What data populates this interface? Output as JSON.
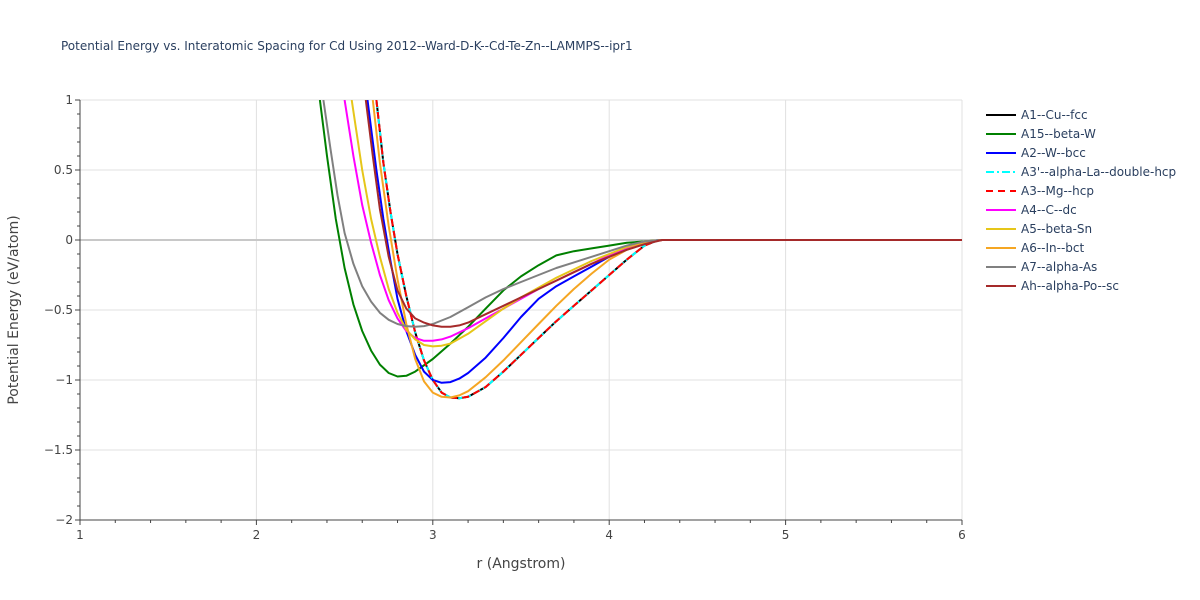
{
  "chart_data": {
    "type": "line",
    "title": "Potential Energy vs. Interatomic Spacing for Cd Using 2012--Ward-D-K--Cd-Te-Zn--LAMMPS--ipr1",
    "xlabel": "r (Angstrom)",
    "ylabel": "Potential Energy (eV/atom)",
    "xlim": [
      1,
      6
    ],
    "ylim": [
      -2,
      1
    ],
    "xticks": [
      1,
      2,
      3,
      4,
      5,
      6
    ],
    "xtick_labels": [
      "1",
      "2",
      "3",
      "4",
      "5",
      "6"
    ],
    "yticks": [
      -2,
      -1.5,
      -1,
      -0.5,
      0,
      0.5,
      1
    ],
    "ytick_labels": [
      "−2",
      "−1.5",
      "−1",
      "−0.5",
      "0",
      "0.5",
      "1"
    ],
    "grid": true,
    "legend_position": "right",
    "series": [
      {
        "name": "A1--Cu--fcc",
        "color": "#000000",
        "dash": "solid",
        "x": [
          2.68,
          2.72,
          2.76,
          2.8,
          2.85,
          2.9,
          2.95,
          3.0,
          3.05,
          3.1,
          3.15,
          3.2,
          3.3,
          3.4,
          3.5,
          3.6,
          3.7,
          3.8,
          3.9,
          4.0,
          4.1,
          4.2,
          4.28,
          4.4,
          5.0,
          6.0
        ],
        "y": [
          1.0,
          0.55,
          0.2,
          -0.1,
          -0.4,
          -0.66,
          -0.86,
          -1.0,
          -1.09,
          -1.125,
          -1.13,
          -1.12,
          -1.05,
          -0.94,
          -0.82,
          -0.7,
          -0.58,
          -0.47,
          -0.36,
          -0.25,
          -0.14,
          -0.04,
          0.0,
          0.0,
          0.0,
          0.0
        ]
      },
      {
        "name": "A15--beta-W",
        "color": "#008000",
        "dash": "solid",
        "x": [
          2.36,
          2.4,
          2.45,
          2.5,
          2.55,
          2.6,
          2.65,
          2.7,
          2.75,
          2.8,
          2.85,
          2.9,
          3.0,
          3.1,
          3.2,
          3.3,
          3.4,
          3.5,
          3.6,
          3.7,
          3.8,
          3.9,
          4.0,
          4.1,
          4.2,
          4.3,
          5.0,
          6.0
        ],
        "y": [
          1.0,
          0.6,
          0.15,
          -0.2,
          -0.46,
          -0.65,
          -0.79,
          -0.89,
          -0.95,
          -0.975,
          -0.97,
          -0.94,
          -0.85,
          -0.74,
          -0.62,
          -0.49,
          -0.36,
          -0.26,
          -0.18,
          -0.11,
          -0.08,
          -0.06,
          -0.04,
          -0.02,
          -0.01,
          0.0,
          0.0,
          0.0
        ]
      },
      {
        "name": "A2--W--bcc",
        "color": "#0000ff",
        "dash": "solid",
        "x": [
          2.63,
          2.68,
          2.72,
          2.76,
          2.8,
          2.85,
          2.9,
          2.95,
          3.0,
          3.05,
          3.1,
          3.15,
          3.2,
          3.3,
          3.4,
          3.5,
          3.6,
          3.7,
          3.8,
          3.9,
          4.0,
          4.1,
          4.2,
          4.28,
          5.0,
          6.0
        ],
        "y": [
          1.0,
          0.5,
          0.15,
          -0.15,
          -0.42,
          -0.65,
          -0.82,
          -0.94,
          -1.0,
          -1.02,
          -1.015,
          -0.99,
          -0.95,
          -0.84,
          -0.7,
          -0.55,
          -0.42,
          -0.33,
          -0.26,
          -0.19,
          -0.12,
          -0.06,
          -0.02,
          0.0,
          0.0,
          0.0
        ]
      },
      {
        "name": "A3'--alpha-La--double-hcp",
        "color": "#00ffff",
        "dash": "dashdot",
        "x": [
          2.68,
          2.72,
          2.76,
          2.8,
          2.85,
          2.9,
          2.95,
          3.0,
          3.05,
          3.1,
          3.15,
          3.2,
          3.3,
          3.4,
          3.5,
          3.6,
          3.7,
          3.8,
          3.9,
          4.0,
          4.1,
          4.2,
          4.28,
          4.4,
          5.0,
          6.0
        ],
        "y": [
          1.0,
          0.55,
          0.2,
          -0.1,
          -0.4,
          -0.66,
          -0.86,
          -1.0,
          -1.09,
          -1.125,
          -1.13,
          -1.12,
          -1.05,
          -0.94,
          -0.82,
          -0.7,
          -0.58,
          -0.47,
          -0.36,
          -0.25,
          -0.14,
          -0.04,
          0.0,
          0.0,
          0.0,
          0.0
        ]
      },
      {
        "name": "A3--Mg--hcp",
        "color": "#ff0000",
        "dash": "dash",
        "x": [
          2.68,
          2.72,
          2.76,
          2.8,
          2.85,
          2.9,
          2.95,
          3.0,
          3.05,
          3.1,
          3.15,
          3.2,
          3.3,
          3.4,
          3.5,
          3.6,
          3.7,
          3.8,
          3.9,
          4.0,
          4.1,
          4.2,
          4.28,
          4.4,
          5.0,
          6.0
        ],
        "y": [
          1.0,
          0.55,
          0.2,
          -0.1,
          -0.4,
          -0.66,
          -0.86,
          -1.0,
          -1.09,
          -1.125,
          -1.13,
          -1.12,
          -1.05,
          -0.94,
          -0.82,
          -0.7,
          -0.58,
          -0.47,
          -0.36,
          -0.25,
          -0.14,
          -0.04,
          0.0,
          0.0,
          0.0,
          0.0
        ]
      },
      {
        "name": "A4--C--dc",
        "color": "#ff00ff",
        "dash": "solid",
        "x": [
          2.5,
          2.55,
          2.6,
          2.65,
          2.7,
          2.75,
          2.8,
          2.85,
          2.9,
          2.95,
          3.0,
          3.05,
          3.1,
          3.2,
          3.3,
          3.4,
          3.5,
          3.6,
          3.7,
          3.8,
          3.9,
          4.0,
          4.1,
          4.2,
          4.3,
          5.0,
          6.0
        ],
        "y": [
          1.0,
          0.6,
          0.25,
          -0.02,
          -0.25,
          -0.43,
          -0.56,
          -0.65,
          -0.7,
          -0.72,
          -0.72,
          -0.71,
          -0.69,
          -0.63,
          -0.56,
          -0.49,
          -0.42,
          -0.35,
          -0.29,
          -0.23,
          -0.17,
          -0.11,
          -0.06,
          -0.02,
          0.0,
          0.0,
          0.0
        ]
      },
      {
        "name": "A5--beta-Sn",
        "color": "#e6c619",
        "dash": "solid",
        "x": [
          2.54,
          2.6,
          2.65,
          2.7,
          2.75,
          2.8,
          2.85,
          2.9,
          2.95,
          3.0,
          3.05,
          3.1,
          3.2,
          3.3,
          3.4,
          3.5,
          3.6,
          3.7,
          3.8,
          3.9,
          4.0,
          4.1,
          4.2,
          4.3,
          5.0,
          6.0
        ],
        "y": [
          1.0,
          0.5,
          0.15,
          -0.12,
          -0.35,
          -0.52,
          -0.64,
          -0.71,
          -0.75,
          -0.76,
          -0.755,
          -0.74,
          -0.67,
          -0.58,
          -0.49,
          -0.41,
          -0.34,
          -0.27,
          -0.21,
          -0.15,
          -0.1,
          -0.05,
          -0.01,
          0.0,
          0.0,
          0.0
        ]
      },
      {
        "name": "A6--In--bct",
        "color": "#f5a623",
        "dash": "solid",
        "x": [
          2.66,
          2.7,
          2.75,
          2.8,
          2.85,
          2.9,
          2.95,
          3.0,
          3.05,
          3.1,
          3.15,
          3.2,
          3.3,
          3.4,
          3.5,
          3.6,
          3.7,
          3.8,
          3.9,
          4.0,
          4.1,
          4.2,
          4.3,
          5.0,
          6.0
        ],
        "y": [
          1.0,
          0.55,
          0.1,
          -0.28,
          -0.6,
          -0.85,
          -1.01,
          -1.09,
          -1.12,
          -1.125,
          -1.11,
          -1.08,
          -0.98,
          -0.86,
          -0.73,
          -0.6,
          -0.47,
          -0.35,
          -0.24,
          -0.14,
          -0.07,
          -0.02,
          0.0,
          0.0,
          0.0
        ]
      },
      {
        "name": "A7--alpha-As",
        "color": "#808080",
        "dash": "solid",
        "x": [
          2.38,
          2.42,
          2.46,
          2.5,
          2.55,
          2.6,
          2.65,
          2.7,
          2.75,
          2.8,
          2.85,
          2.9,
          2.95,
          3.0,
          3.1,
          3.2,
          3.3,
          3.4,
          3.5,
          3.6,
          3.7,
          3.8,
          3.9,
          4.0,
          4.1,
          4.2,
          4.3,
          5.0,
          6.0
        ],
        "y": [
          1.0,
          0.65,
          0.32,
          0.05,
          -0.17,
          -0.33,
          -0.44,
          -0.52,
          -0.57,
          -0.6,
          -0.615,
          -0.62,
          -0.615,
          -0.6,
          -0.55,
          -0.48,
          -0.41,
          -0.35,
          -0.3,
          -0.25,
          -0.2,
          -0.16,
          -0.12,
          -0.08,
          -0.04,
          -0.01,
          0.0,
          0.0,
          0.0
        ]
      },
      {
        "name": "Ah--alpha-Po--sc",
        "color": "#a52a2a",
        "dash": "solid",
        "x": [
          2.62,
          2.66,
          2.7,
          2.75,
          2.8,
          2.85,
          2.9,
          2.95,
          3.0,
          3.05,
          3.1,
          3.15,
          3.2,
          3.3,
          3.4,
          3.5,
          3.6,
          3.7,
          3.8,
          3.9,
          4.0,
          4.1,
          4.2,
          4.3,
          5.0,
          6.0
        ],
        "y": [
          1.0,
          0.6,
          0.22,
          -0.12,
          -0.36,
          -0.49,
          -0.56,
          -0.59,
          -0.61,
          -0.62,
          -0.62,
          -0.61,
          -0.59,
          -0.53,
          -0.47,
          -0.41,
          -0.35,
          -0.29,
          -0.23,
          -0.17,
          -0.12,
          -0.07,
          -0.03,
          0.0,
          0.0,
          0.0
        ]
      }
    ]
  }
}
